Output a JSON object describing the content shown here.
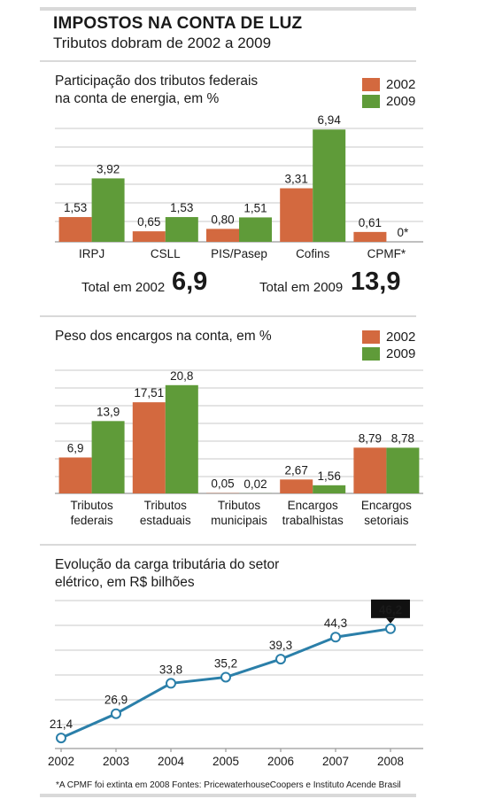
{
  "title": "IMPOSTOS NA CONTA DE LUZ",
  "subtitle": "Tributos dobram de 2002 a 2009",
  "colors": {
    "y2002": "#d3693f",
    "y2009": "#5f9b39",
    "line": "#2b7fa9"
  },
  "chart_data": [
    {
      "type": "bar",
      "title": "Participação dos tributos federais na conta de energia, em %",
      "title_lines": [
        "Participação dos tributos federais",
        "na conta de energia, em %"
      ],
      "categories": [
        "IRPJ",
        "CSLL",
        "PIS/Pasep",
        "Cofins",
        "CPMF*"
      ],
      "series": [
        {
          "name": "2002",
          "values": [
            1.53,
            0.65,
            0.8,
            3.31,
            0.61
          ],
          "labels": [
            "1,53",
            "0,65",
            "0,80",
            "3,31",
            "0,61"
          ]
        },
        {
          "name": "2009",
          "values": [
            3.92,
            1.53,
            1.51,
            6.94,
            0
          ],
          "labels": [
            "3,92",
            "1,53",
            "1,51",
            "6,94",
            "0*"
          ]
        }
      ],
      "ylim": [
        0,
        7.5
      ],
      "grid": true,
      "legend": "top-right",
      "totals": [
        {
          "label": "Total em 2002",
          "value": "6,9"
        },
        {
          "label": "Total em 2009",
          "value": "13,9"
        }
      ]
    },
    {
      "type": "bar",
      "title": "Peso dos encargos na conta, em %",
      "title_lines": [
        "Peso dos encargos na conta, em %"
      ],
      "categories": [
        [
          "Tributos",
          "federais"
        ],
        [
          "Tributos",
          "estaduais"
        ],
        [
          "Tributos",
          "municipais"
        ],
        [
          "Encargos",
          "trabalhistas"
        ],
        [
          "Encargos",
          "setoriais"
        ]
      ],
      "series": [
        {
          "name": "2002",
          "values": [
            6.9,
            17.51,
            0.05,
            2.67,
            8.79
          ],
          "labels": [
            "6,9",
            "17,51",
            "0,05",
            "2,67",
            "8,79"
          ]
        },
        {
          "name": "2009",
          "values": [
            13.9,
            20.8,
            0.02,
            1.56,
            8.78
          ],
          "labels": [
            "13,9",
            "20,8",
            "0,02",
            "1,56",
            "8,78"
          ]
        }
      ],
      "ylim": [
        0,
        24
      ],
      "grid": true,
      "legend": "top-right"
    },
    {
      "type": "line",
      "title": "Evolução da carga tributária do setor elétrico, em R$ bilhões",
      "title_lines": [
        "Evolução da carga tributária do setor",
        "elétrico, em R$ bilhões"
      ],
      "x": [
        "2002",
        "2003",
        "2004",
        "2005",
        "2006",
        "2007",
        "2008"
      ],
      "values": [
        21.4,
        26.9,
        33.8,
        35.2,
        39.3,
        44.3,
        46.2
      ],
      "labels": [
        "21,4",
        "26,9",
        "33,8",
        "35,2",
        "39,3",
        "44,3",
        "46,2"
      ],
      "highlight_last": true,
      "ylim": [
        19,
        53
      ],
      "grid": true
    }
  ],
  "footnote": "*A CPMF foi extinta em 2008    Fontes: PricewaterhouseCoopers e Instituto Acende Brasil"
}
